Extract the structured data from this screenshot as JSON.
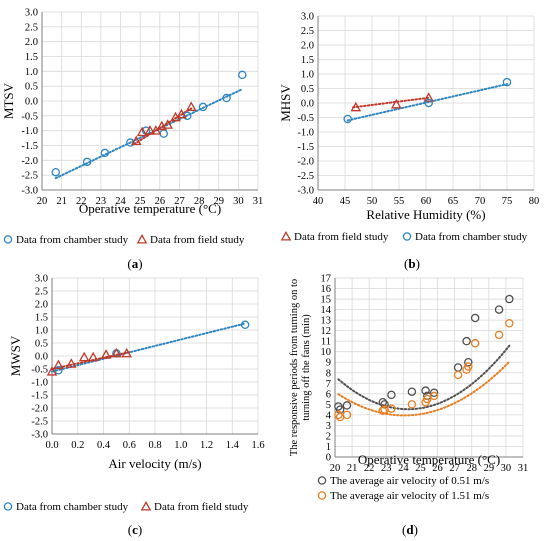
{
  "chart_data": [
    {
      "type": "scatter",
      "panel_label": "(a)",
      "xlabel": "Operative temperature (°C)",
      "ylabel": "MTSV",
      "xlim": [
        20,
        31
      ],
      "ylim": [
        -3.0,
        3.0
      ],
      "xticks": [
        20,
        21,
        22,
        23,
        24,
        25,
        26,
        27,
        28,
        29,
        30,
        31
      ],
      "yticks": [
        -3.0,
        -2.5,
        -2.0,
        -1.5,
        -1.0,
        -0.5,
        0.0,
        0.5,
        1.0,
        1.5,
        2.0,
        2.5,
        3.0
      ],
      "grid": true,
      "legend_position": "bottom",
      "series": [
        {
          "name": "Data from chamber study",
          "marker": "circle",
          "color": "#2e86c1",
          "x": [
            20.7,
            22.3,
            23.2,
            24.5,
            25.3,
            26.2,
            27.4,
            28.2,
            29.4,
            30.2
          ],
          "y": [
            -2.4,
            -2.05,
            -1.75,
            -1.4,
            -1.0,
            -1.1,
            -0.5,
            -0.2,
            0.1,
            0.88
          ]
        },
        {
          "name": "Data from field study",
          "marker": "triangle",
          "color": "#c0392b",
          "x": [
            24.8,
            25.1,
            25.5,
            25.8,
            26.1,
            26.4,
            26.8,
            27.1,
            27.6
          ],
          "y": [
            -1.35,
            -1.05,
            -1.0,
            -1.0,
            -0.85,
            -0.8,
            -0.55,
            -0.45,
            -0.2
          ]
        }
      ],
      "trendlines": [
        {
          "color": "#2e86c1",
          "x": [
            20.7,
            30.2
          ],
          "y": [
            -2.6,
            0.4
          ]
        },
        {
          "color": "#c0392b",
          "x": [
            24.7,
            27.6
          ],
          "y": [
            -1.45,
            -0.25
          ]
        }
      ]
    },
    {
      "type": "scatter",
      "panel_label": "(b)",
      "xlabel": "Relative Humidity (%)",
      "ylabel": "MHSV",
      "xlim": [
        40,
        80
      ],
      "ylim": [
        -3.0,
        3.0
      ],
      "xticks": [
        40,
        45,
        50,
        55,
        60,
        65,
        70,
        75,
        80
      ],
      "yticks": [
        -3.0,
        -2.5,
        -2.0,
        -1.5,
        -1.0,
        -0.5,
        0.0,
        0.5,
        1.0,
        1.5,
        2.0,
        2.5,
        3.0
      ],
      "grid": true,
      "legend_position": "bottom",
      "series": [
        {
          "name": "Data from field study",
          "marker": "triangle",
          "color": "#c0392b",
          "x": [
            47,
            54.5,
            60.5
          ],
          "y": [
            -0.15,
            -0.05,
            0.18
          ]
        },
        {
          "name": "Data from chamber study",
          "marker": "circle",
          "color": "#2e86c1",
          "x": [
            45.5,
            60.5,
            75
          ],
          "y": [
            -0.55,
            0.0,
            0.72
          ]
        }
      ],
      "trendlines": [
        {
          "color": "#c0392b",
          "x": [
            46.5,
            60.5
          ],
          "y": [
            -0.15,
            0.18
          ]
        },
        {
          "color": "#2e86c1",
          "x": [
            45.5,
            75
          ],
          "y": [
            -0.6,
            0.65
          ]
        }
      ]
    },
    {
      "type": "scatter",
      "panel_label": "(c)",
      "xlabel": "Air velocity (m/s)",
      "ylabel": "MWSV",
      "xlim": [
        0.0,
        1.6
      ],
      "ylim": [
        -3.0,
        3.0
      ],
      "xticks": [
        0.0,
        0.2,
        0.4,
        0.6,
        0.8,
        1.0,
        1.2,
        1.4,
        1.6
      ],
      "yticks": [
        -3.0,
        -2.5,
        -2.0,
        -1.5,
        -1.0,
        -0.5,
        0.0,
        0.5,
        1.0,
        1.5,
        2.0,
        2.5,
        3.0
      ],
      "grid": true,
      "legend_position": "bottom",
      "series": [
        {
          "name": "Data from chamber study",
          "marker": "circle",
          "color": "#2e86c1",
          "x": [
            0.05,
            0.5,
            1.5
          ],
          "y": [
            -0.55,
            0.1,
            1.2
          ]
        },
        {
          "name": "Data from field study",
          "marker": "triangle",
          "color": "#c0392b",
          "x": [
            0.0,
            0.05,
            0.15,
            0.25,
            0.32,
            0.42,
            0.5,
            0.58
          ],
          "y": [
            -0.6,
            -0.35,
            -0.3,
            -0.05,
            -0.05,
            0.05,
            0.1,
            0.1
          ]
        }
      ],
      "trendlines": [
        {
          "color": "#2e86c1",
          "x": [
            0.0,
            1.5
          ],
          "y": [
            -0.6,
            1.25
          ]
        },
        {
          "color": "#c0392b",
          "x": [
            0.0,
            0.6
          ],
          "y": [
            -0.5,
            0.15
          ]
        }
      ]
    },
    {
      "type": "scatter",
      "panel_label": "(d)",
      "xlabel": "Operative temperature (°C)",
      "ylabel": "The responsive periods from turning on to turning off the fans (min)",
      "ylabel_lines": [
        "The responsive periods from turning on to",
        "turning off the fans (min)"
      ],
      "xlim": [
        20,
        31
      ],
      "ylim": [
        0,
        17
      ],
      "xticks": [
        20,
        21,
        22,
        23,
        24,
        25,
        26,
        27,
        28,
        29,
        30,
        31
      ],
      "yticks": [
        0,
        1,
        2,
        3,
        4,
        5,
        6,
        7,
        8,
        9,
        10,
        11,
        12,
        13,
        14,
        15,
        16,
        17
      ],
      "grid": true,
      "legend_position": "bottom",
      "series": [
        {
          "name": "The average air velocity of 0.51 m/s",
          "marker": "circle",
          "color": "#505050",
          "x": [
            20.2,
            20.3,
            20.7,
            22.8,
            22.9,
            23.3,
            24.5,
            25.3,
            25.4,
            25.8,
            27.2,
            27.7,
            27.8,
            28.2,
            29.6,
            30.2
          ],
          "y": [
            4.8,
            4.5,
            4.9,
            5.2,
            5.0,
            5.9,
            6.2,
            6.3,
            5.8,
            6.1,
            8.5,
            11.0,
            9.0,
            13.2,
            14.0,
            15.0
          ]
        },
        {
          "name": "The average air velocity of 1.51 m/s",
          "marker": "circle",
          "color": "#e67e22",
          "x": [
            20.2,
            20.3,
            20.7,
            22.8,
            22.9,
            23.3,
            24.5,
            25.3,
            25.4,
            25.8,
            27.2,
            27.7,
            27.8,
            28.2,
            29.6,
            30.2
          ],
          "y": [
            4.0,
            3.8,
            4.0,
            4.4,
            4.5,
            4.6,
            5.0,
            5.2,
            5.5,
            5.8,
            7.8,
            8.3,
            8.6,
            10.8,
            11.6,
            12.7
          ]
        }
      ],
      "trendcurves": [
        {
          "color": "#505050",
          "a": 0.1716,
          "b": -8.33,
          "c": 105.63,
          "x": [
            20.2,
            30.2
          ]
        },
        {
          "color": "#e67e22",
          "a": 0.1351,
          "b": -6.5,
          "c": 82.13,
          "x": [
            20.2,
            30.2
          ]
        }
      ]
    }
  ]
}
